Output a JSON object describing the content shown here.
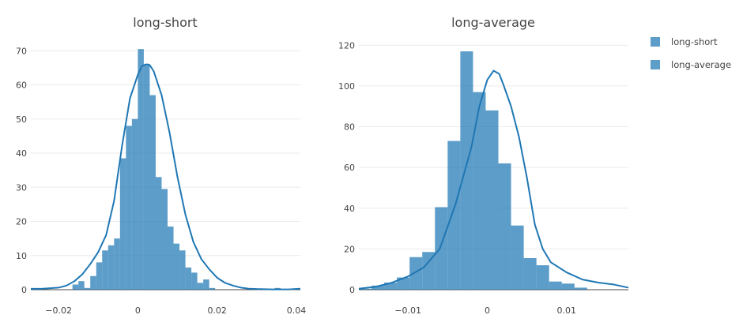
{
  "colors": {
    "bar": "#1f77b4",
    "curve": "#1f77b4",
    "grid": "#ebebeb",
    "text": "#444444"
  },
  "legend": {
    "placement": "top-right",
    "items": [
      {
        "label": "long-short",
        "color": "#1f77b4"
      },
      {
        "label": "long-average",
        "color": "#1f77b4"
      }
    ]
  },
  "chart_data": [
    {
      "type": "bar",
      "title": "long-short",
      "xlabel": "",
      "ylabel": "",
      "grid": true,
      "xlim": [
        -0.027,
        0.041
      ],
      "ylim": [
        0,
        74
      ],
      "xticks": [
        -0.02,
        0,
        0.02,
        0.04
      ],
      "xtick_labels": [
        "−0.02",
        "0",
        "0.02",
        "0.04"
      ],
      "yticks": [
        0,
        10,
        20,
        30,
        40,
        50,
        60,
        70
      ],
      "ytick_labels": [
        "0",
        "10",
        "20",
        "30",
        "40",
        "50",
        "60",
        "70"
      ],
      "bin_width": 0.0015,
      "bin_start": -0.027,
      "counts": [
        0.5,
        0,
        0,
        0,
        0,
        0,
        0,
        1.5,
        2.5,
        0.5,
        4,
        8,
        11.5,
        13,
        15,
        38.5,
        48,
        50,
        70.5,
        66,
        57,
        33,
        29.5,
        18.5,
        13.5,
        11.5,
        6.5,
        5,
        2,
        3,
        0.5,
        0,
        0,
        0,
        0,
        0,
        0,
        0,
        0,
        0,
        0,
        0.5
      ],
      "kde_x": [
        -0.027,
        -0.024,
        -0.02,
        -0.018,
        -0.016,
        -0.014,
        -0.012,
        -0.01,
        -0.008,
        -0.006,
        -0.004,
        -0.002,
        0,
        0.001,
        0.002,
        0.0025,
        0.003,
        0.004,
        0.006,
        0.008,
        0.01,
        0.012,
        0.014,
        0.016,
        0.018,
        0.02,
        0.022,
        0.024,
        0.026,
        0.028,
        0.03,
        0.034,
        0.038,
        0.041
      ],
      "kde_y": [
        0.2,
        0.3,
        0.6,
        1.2,
        2.5,
        4.5,
        7.5,
        11,
        16,
        26,
        42,
        56,
        63,
        65.5,
        66,
        66,
        65.8,
        64,
        57,
        46,
        33,
        22,
        14,
        9,
        6,
        3.5,
        2,
        1.2,
        0.6,
        0.3,
        0.2,
        0.1,
        0.1,
        0.3
      ],
      "series": [
        {
          "name": "long-short"
        }
      ]
    },
    {
      "type": "bar",
      "title": "long-average",
      "xlabel": "",
      "ylabel": "",
      "grid": true,
      "xlim": [
        -0.0162,
        0.0178
      ],
      "ylim": [
        0,
        124
      ],
      "xticks": [
        -0.01,
        0,
        0.01
      ],
      "xtick_labels": [
        "−0.01",
        "0",
        "0.01"
      ],
      "yticks": [
        0,
        20,
        40,
        60,
        80,
        100,
        120
      ],
      "ytick_labels": [
        "0",
        "20",
        "40",
        "60",
        "80",
        "100",
        "120"
      ],
      "bin_width": 0.0016,
      "bin_start": -0.0162,
      "counts": [
        0.5,
        2,
        3.5,
        6,
        16,
        18.5,
        40.5,
        73,
        117,
        97,
        88,
        62,
        31.5,
        15.5,
        12,
        4,
        3,
        1
      ],
      "kde_x": [
        -0.0162,
        -0.014,
        -0.012,
        -0.01,
        -0.008,
        -0.006,
        -0.004,
        -0.002,
        -0.001,
        0,
        0.0008,
        0.0015,
        0.002,
        0.003,
        0.004,
        0.005,
        0.006,
        0.007,
        0.008,
        0.01,
        0.012,
        0.014,
        0.016,
        0.0178
      ],
      "kde_y": [
        0.5,
        1.5,
        3.5,
        6.5,
        11,
        20,
        42,
        70,
        90,
        103,
        107.5,
        106,
        101,
        90,
        75,
        55,
        32,
        20,
        13.5,
        8.5,
        5,
        3.5,
        2.5,
        1
      ],
      "series": [
        {
          "name": "long-average"
        }
      ]
    }
  ]
}
